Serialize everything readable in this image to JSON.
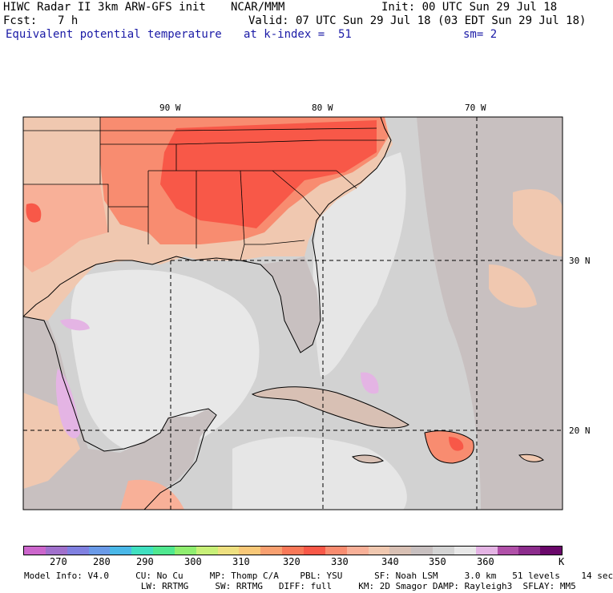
{
  "header": {
    "title": "HIWC Radar II 3km ARW-GFS init",
    "center": "NCAR/MMM",
    "init": "Init: 00 UTC Sun 29 Jul 18",
    "fcst_label": "Fcst:",
    "fcst_value": "7 h",
    "valid": "Valid: 07 UTC Sun 29 Jul 18 (03 EDT Sun 29 Jul 18)",
    "field": "Equivalent potential temperature",
    "level": "at k-index =  51",
    "smoothing": "sm= 2"
  },
  "map": {
    "lon_labels": [
      "90 W",
      "80 W",
      "70 W"
    ],
    "lat_labels": [
      "30 N",
      "20 N"
    ]
  },
  "colorbar": {
    "colors": [
      "#cc66cc",
      "#a070cc",
      "#8080e0",
      "#6a9ae8",
      "#4ab8e8",
      "#40e0c0",
      "#50e890",
      "#90ee70",
      "#c8f078",
      "#eee080",
      "#f8c878",
      "#f8a070",
      "#f87858",
      "#f85848",
      "#f88c70",
      "#f8b098",
      "#f0c8b0",
      "#d8c0b4",
      "#c8c0c0",
      "#d4d4d4",
      "#e8e8e8",
      "#e4b4e4",
      "#b050a8",
      "#8c2c8c",
      "#6a086a"
    ],
    "tick_labels": [
      "270",
      "280",
      "290",
      "300",
      "310",
      "320",
      "330",
      "340",
      "350",
      "360",
      "K"
    ]
  },
  "footer": {
    "line1": "Model Info: V4.0     CU: No Cu     MP: Thomp C/A    PBL: YSU      SF: Noah LSM     3.0 km   51 levels    14 sec",
    "line2": "                      LW: RRTMG     SW: RRTMG   DIFF: full     KM: 2D Smagor DAMP: Rayleigh3  SFLAY: MM5"
  }
}
